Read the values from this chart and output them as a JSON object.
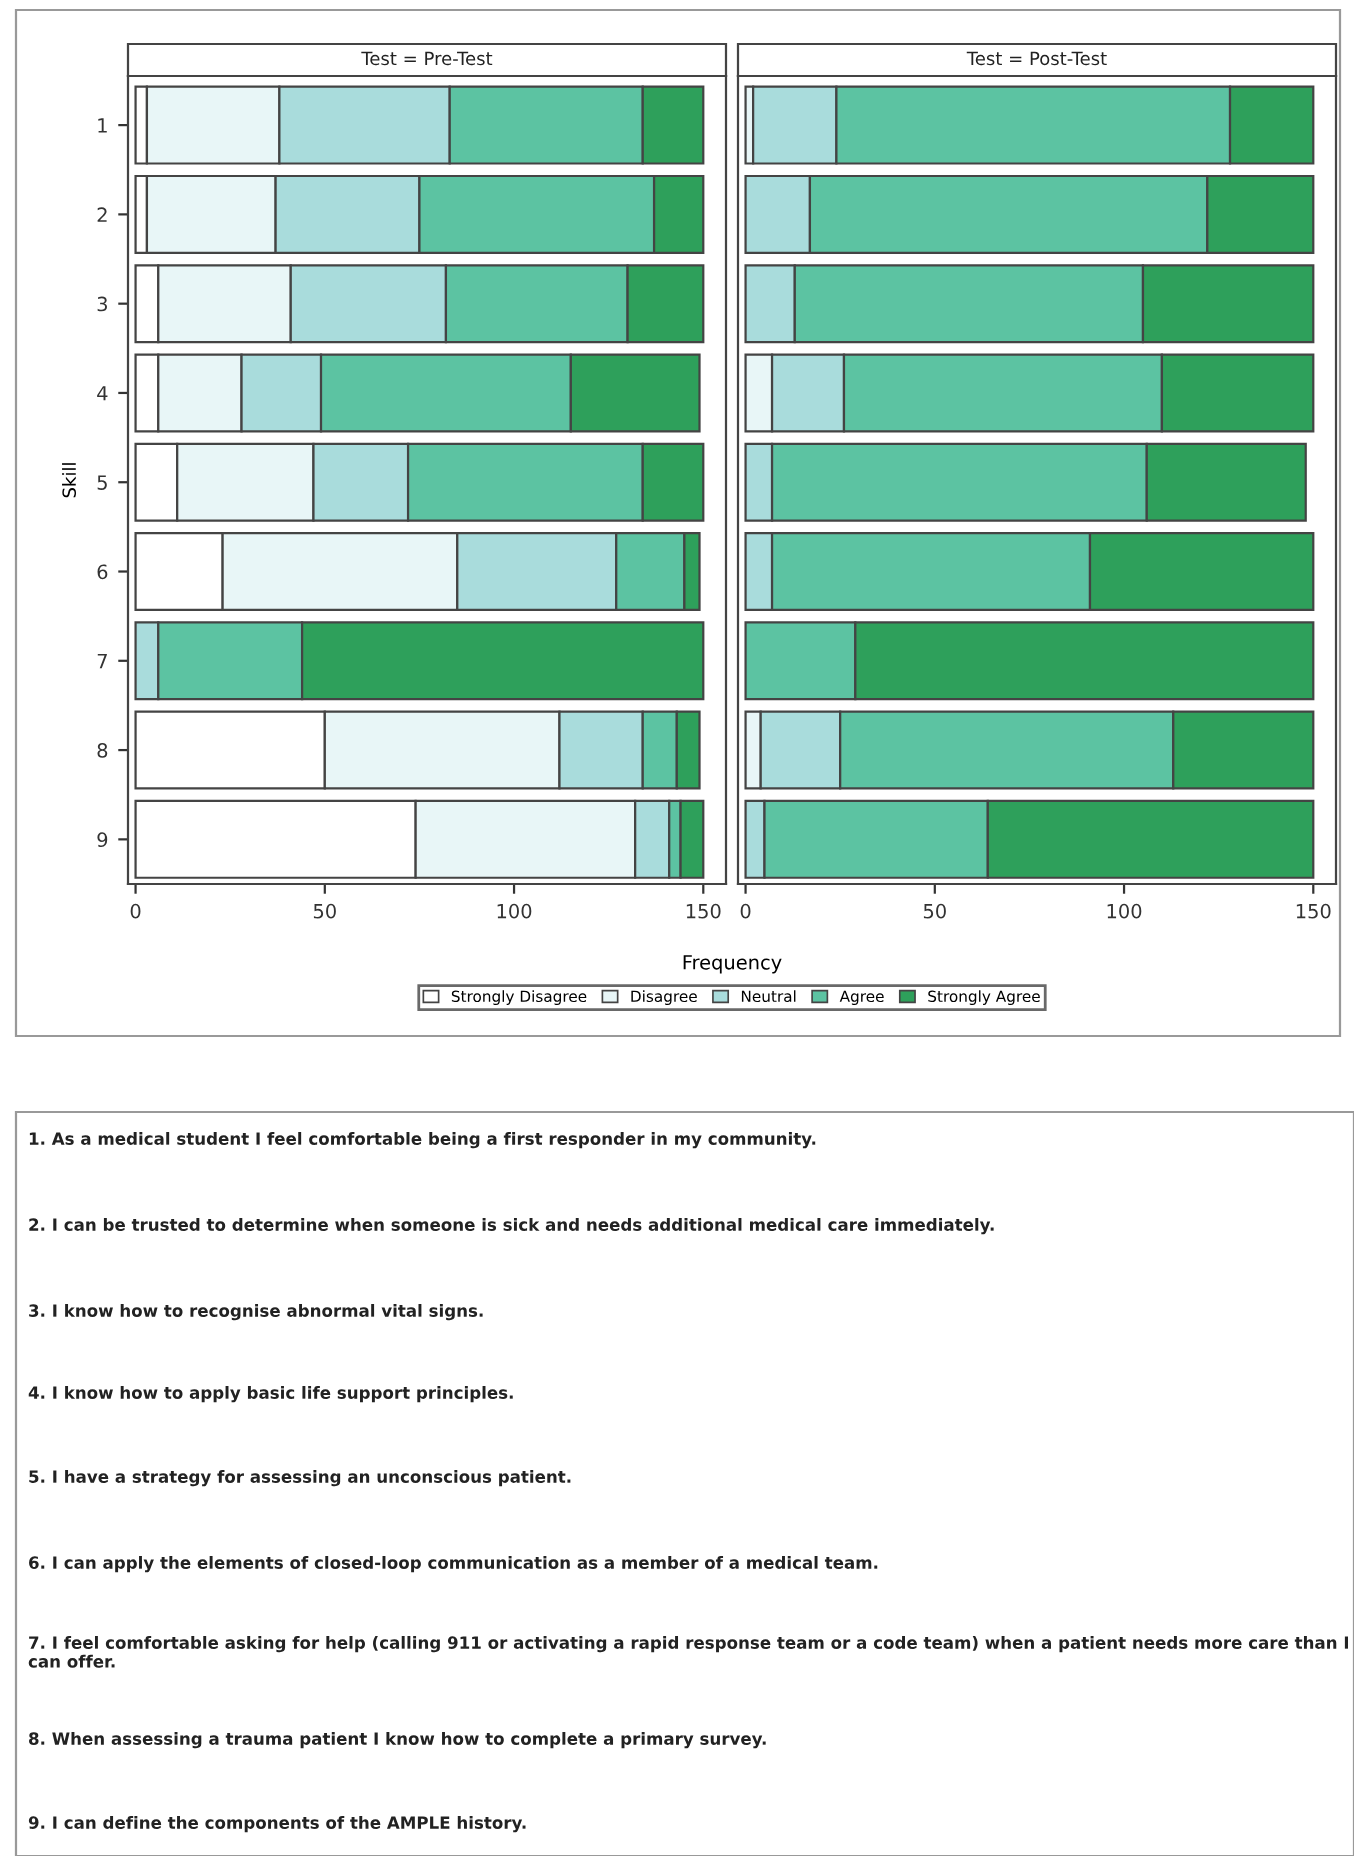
{
  "chart_data": [
    {
      "type": "bar",
      "orientation": "horizontal",
      "stacked": true,
      "title": "Test = Pre-Test",
      "xlabel": "Frequency",
      "ylabel": "Skill",
      "categories": [
        "1",
        "2",
        "3",
        "4",
        "5",
        "6",
        "7",
        "8",
        "9"
      ],
      "xlim": [
        -2,
        156
      ],
      "xticks": [
        0,
        50,
        100,
        150
      ],
      "legend": "bottom",
      "grid": false,
      "series": [
        {
          "name": "Strongly Disagree",
          "color": "#ffffff",
          "values": [
            3,
            3,
            6,
            6,
            11,
            23,
            0,
            50,
            74
          ]
        },
        {
          "name": "Disagree",
          "color": "#e8f6f7",
          "values": [
            35,
            34,
            35,
            22,
            36,
            62,
            0,
            62,
            58
          ]
        },
        {
          "name": "Neutral",
          "color": "#a9dcdc",
          "values": [
            45,
            38,
            41,
            21,
            25,
            42,
            6,
            22,
            9
          ]
        },
        {
          "name": "Agree",
          "color": "#5cc3a2",
          "values": [
            51,
            62,
            48,
            66,
            62,
            18,
            38,
            9,
            3
          ]
        },
        {
          "name": "Strongly Agree",
          "color": "#2ea05b",
          "values": [
            16,
            13,
            20,
            34,
            16,
            4,
            106,
            6,
            6
          ]
        }
      ],
      "annotations": [
        "1. As a medical student I feel comfortable being a first responder in my community.",
        "2. I can be trusted to determine when someone is sick and needs additional medical care immediately.",
        "3. I know how to recognise abnormal vital signs.",
        "4. I know how to apply basic life support principles.",
        "5. I have a strategy for assessing an unconscious patient.",
        "6. I can apply the elements of closed-loop communication as a member of a medical team.",
        "7. I feel comfortable asking for help (calling 911 or activating a rapid response team or a code team) when a patient needs more care than I can offer.",
        "8. When assessing a trauma patient I know how to complete a primary survey.",
        "9. I can define the components of the AMPLE history."
      ]
    },
    {
      "type": "bar",
      "orientation": "horizontal",
      "stacked": true,
      "title": "Test = Post-Test",
      "tick_labels": "x",
      "categories": [
        "1",
        "2",
        "3",
        "4",
        "5",
        "6",
        "7",
        "8",
        "9"
      ],
      "xlim": [
        -2,
        156
      ],
      "xticks": [
        0,
        50,
        100,
        150
      ],
      "series": [
        {
          "color": "#ffffff",
          "values": [
            0,
            0,
            0,
            0,
            0,
            0,
            0,
            0,
            0
          ]
        },
        {
          "color": "#e8f6f7",
          "values": [
            2,
            0,
            0,
            7,
            0,
            0,
            0,
            4,
            0
          ]
        },
        {
          "color": "#a9dcdc",
          "values": [
            22,
            17,
            13,
            19,
            7,
            7,
            0,
            21,
            5
          ]
        },
        {
          "color": "#5cc3a2",
          "values": [
            104,
            105,
            92,
            84,
            99,
            84,
            29,
            88,
            59
          ]
        },
        {
          "color": "#2ea05b",
          "values": [
            22,
            28,
            45,
            40,
            42,
            59,
            121,
            37,
            86
          ]
        }
      ]
    }
  ]
}
